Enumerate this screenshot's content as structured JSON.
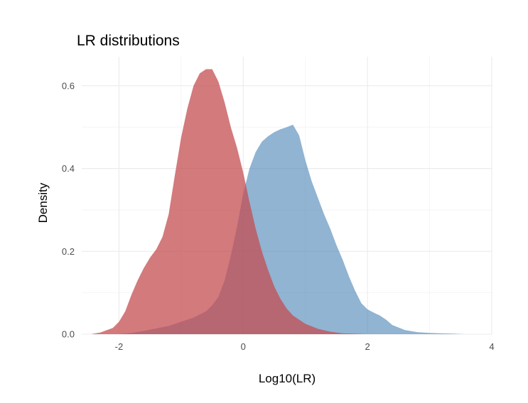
{
  "chart_data": {
    "type": "area",
    "title": "LR distributions",
    "xlabel": "Log10(LR)",
    "ylabel": "Density",
    "xlim": [
      -2.6,
      4
    ],
    "ylim": [
      0,
      0.67
    ],
    "x_ticks": [
      -2,
      0,
      2,
      4
    ],
    "x_tick_labels": [
      "-2",
      "0",
      "2",
      "4"
    ],
    "y_ticks": [
      0.0,
      0.2,
      0.4,
      0.6
    ],
    "y_tick_labels": [
      "0.0",
      "0.2",
      "0.4",
      "0.6"
    ],
    "grid": true,
    "legend": "none",
    "series": [
      {
        "color": "#4682b4",
        "opacity": 0.6,
        "x": [
          -2.0,
          -1.8,
          -1.6,
          -1.4,
          -1.2,
          -1.0,
          -0.8,
          -0.6,
          -0.5,
          -0.4,
          -0.3,
          -0.2,
          -0.1,
          0.0,
          0.1,
          0.2,
          0.3,
          0.4,
          0.5,
          0.6,
          0.7,
          0.8,
          0.9,
          1.0,
          1.1,
          1.2,
          1.3,
          1.4,
          1.5,
          1.6,
          1.7,
          1.8,
          1.9,
          2.0,
          2.1,
          2.2,
          2.3,
          2.4,
          2.6,
          2.8,
          3.0,
          3.2,
          3.4,
          3.55
        ],
        "y": [
          0.0,
          0.003,
          0.008,
          0.014,
          0.02,
          0.03,
          0.04,
          0.055,
          0.07,
          0.09,
          0.13,
          0.19,
          0.26,
          0.34,
          0.4,
          0.44,
          0.465,
          0.478,
          0.488,
          0.495,
          0.5,
          0.506,
          0.48,
          0.42,
          0.37,
          0.33,
          0.29,
          0.255,
          0.215,
          0.18,
          0.14,
          0.105,
          0.075,
          0.06,
          0.052,
          0.045,
          0.035,
          0.022,
          0.01,
          0.005,
          0.003,
          0.002,
          0.001,
          0.0
        ]
      },
      {
        "color": "#c44e52",
        "opacity": 0.75,
        "x": [
          -2.45,
          -2.3,
          -2.1,
          -2.0,
          -1.9,
          -1.8,
          -1.7,
          -1.6,
          -1.5,
          -1.4,
          -1.3,
          -1.2,
          -1.1,
          -1.0,
          -0.9,
          -0.8,
          -0.7,
          -0.6,
          -0.5,
          -0.4,
          -0.3,
          -0.2,
          -0.1,
          0.0,
          0.1,
          0.2,
          0.3,
          0.4,
          0.5,
          0.6,
          0.7,
          0.8,
          1.0,
          1.2,
          1.4,
          1.6,
          1.8,
          2.0
        ],
        "y": [
          0.0,
          0.004,
          0.015,
          0.03,
          0.055,
          0.095,
          0.13,
          0.16,
          0.185,
          0.205,
          0.235,
          0.29,
          0.385,
          0.475,
          0.545,
          0.6,
          0.63,
          0.64,
          0.64,
          0.61,
          0.56,
          0.5,
          0.45,
          0.39,
          0.32,
          0.255,
          0.2,
          0.155,
          0.115,
          0.085,
          0.062,
          0.045,
          0.025,
          0.013,
          0.006,
          0.002,
          0.001,
          0.0
        ]
      }
    ]
  }
}
